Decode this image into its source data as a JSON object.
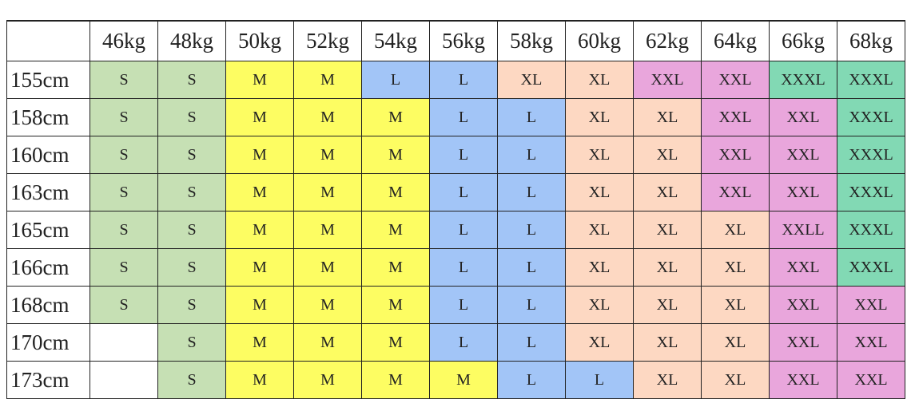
{
  "table": {
    "header": [
      null,
      "46kg",
      "48kg",
      "50kg",
      "52kg",
      "54kg",
      "56kg",
      "58kg",
      "60kg",
      "62kg",
      "64kg",
      "66kg",
      "68kg"
    ],
    "rows": [
      [
        "155cm",
        "S",
        "S",
        "M",
        "M",
        "L",
        "L",
        "XL",
        "XL",
        "XXL",
        "XXL",
        "XXXL",
        "XXXL"
      ],
      [
        "158cm",
        "S",
        "S",
        "M",
        "M",
        "M",
        "L",
        "L",
        "XL",
        "XL",
        "XXL",
        "XXL",
        "XXXL"
      ],
      [
        "160cm",
        "S",
        "S",
        "M",
        "M",
        "M",
        "L",
        "L",
        "XL",
        "XL",
        "XXL",
        "XXL",
        "XXXL"
      ],
      [
        "163cm",
        "S",
        "S",
        "M",
        "M",
        "M",
        "L",
        "L",
        "XL",
        "XL",
        "XXL",
        "XXL",
        "XXXL"
      ],
      [
        "165cm",
        "S",
        "S",
        "M",
        "M",
        "M",
        "L",
        "L",
        "XL",
        "XL",
        "XL",
        "XXLL",
        "XXXL"
      ],
      [
        "166cm",
        "S",
        "S",
        "M",
        "M",
        "M",
        "L",
        "L",
        "XL",
        "XL",
        "XL",
        "XXL",
        "XXXL"
      ],
      [
        "168cm",
        "S",
        "S",
        "M",
        "M",
        "M",
        "L",
        "L",
        "XL",
        "XL",
        "XL",
        "XXL",
        "XXL"
      ],
      [
        "170cm",
        null,
        "S",
        "M",
        "M",
        "M",
        "L",
        "L",
        "XL",
        "XL",
        "XL",
        "XXL",
        "XXL"
      ],
      [
        "173cm",
        null,
        "S",
        "M",
        "M",
        "M",
        "M",
        "L",
        "L",
        "XL",
        "XL",
        "XXL",
        "XXL"
      ]
    ],
    "colors": {
      "S": "#c6e0b4",
      "M": "#fdfd62",
      "L": "#a2c5f7",
      "XL": "#fdd8c2",
      "XXL": "#e9a6dc",
      "XXLL": "#e9a6dc",
      "XXXL": "#82d9b4"
    }
  }
}
